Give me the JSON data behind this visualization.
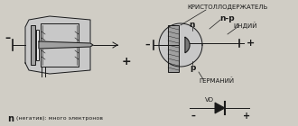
{
  "bg_color": "#d0cdc5",
  "line_color": "#1a1a1a",
  "text_color": "#1a1a1a",
  "fill_gray_light": "#c8c8c8",
  "fill_gray_mid": "#a0a0a0",
  "fill_gray_dark": "#787878",
  "fill_white": "#e8e8e8",
  "left_minus": "–",
  "left_plus": "+",
  "right_minus": "–",
  "right_plus": "+",
  "label_crystal_holder": "КРИСТОЛЛОДЕРЖАТЕЛЬ",
  "label_n": "n",
  "label_np": "n-p",
  "label_indiy": "ИНДИЙ",
  "label_p": "p",
  "label_germaniy": "ГЕРМАНИЙ",
  "label_vd": "VD",
  "bottom_n": "n",
  "bottom_text": "(негатив): много электронов"
}
